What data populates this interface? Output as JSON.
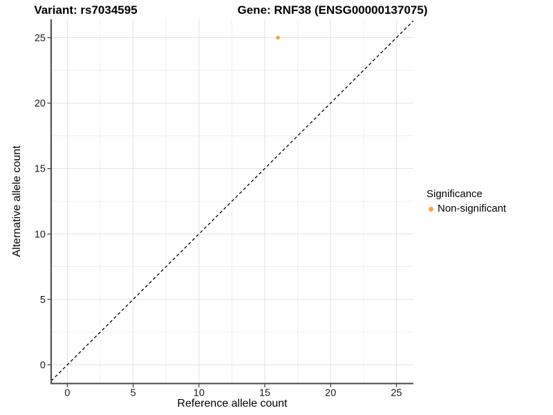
{
  "chart_data": {
    "type": "scatter",
    "titles": {
      "left": "Variant: rs7034595",
      "right": "Gene: RNF38 (ENSG00000137075)"
    },
    "xlabel": "Reference allele count",
    "ylabel": "Alternative allele count",
    "xlim": [
      -1.23,
      26.29
    ],
    "ylim": [
      -1.43,
      26.4
    ],
    "x_ticks": [
      0,
      5,
      10,
      15,
      20,
      25
    ],
    "y_ticks": [
      0,
      5,
      10,
      15,
      20,
      25
    ],
    "x_minor_ticks": [
      2.5,
      7.5,
      12.5,
      17.5,
      22.5
    ],
    "y_minor_ticks": [
      2.5,
      7.5,
      12.5,
      17.5,
      22.5
    ],
    "grid": "major+minor",
    "legend": {
      "title": "Significance",
      "position": "right",
      "items": [
        {
          "label": "Non-significant",
          "color": "#F9A242"
        }
      ]
    },
    "series": [
      {
        "name": "Non-significant",
        "color": "#F9A242",
        "points": [
          {
            "x": 16,
            "y": 25
          }
        ]
      }
    ],
    "reference_line": {
      "type": "identity",
      "equation": "y = x",
      "style": "dashed",
      "color": "#000000"
    }
  },
  "colors": {
    "background": "#FFFFFF",
    "grid_major": "#E2E2E2",
    "grid_minor": "#EFEFEF",
    "axis_line": "#474747",
    "tick": "#333333",
    "tick_label": "#1A1A1A",
    "text": "#000000",
    "point": "#F9A242"
  }
}
